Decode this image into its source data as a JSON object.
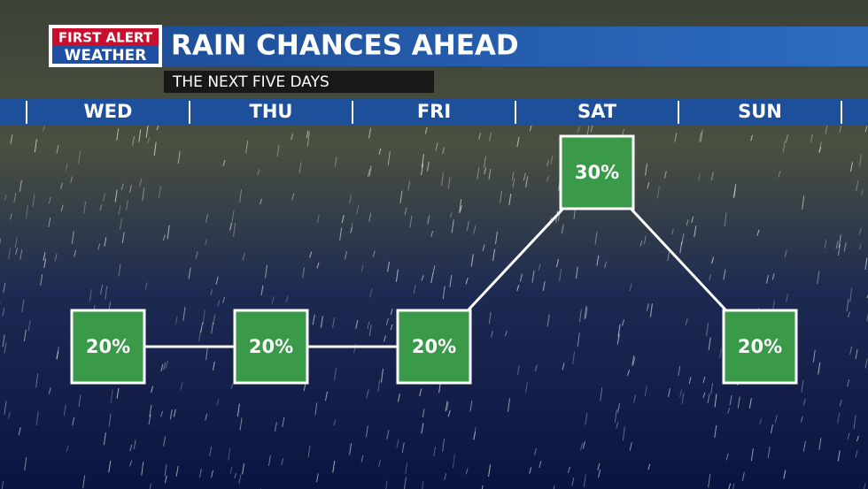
{
  "chart_data": {
    "type": "line",
    "brand": [
      "FIRST ALERT",
      "WEATHER"
    ],
    "title": "RAIN CHANCES AHEAD",
    "subtitle": "THE NEXT FIVE DAYS",
    "categories": [
      "WED",
      "THU",
      "FRI",
      "SAT",
      "SUN"
    ],
    "values": [
      20,
      20,
      20,
      30,
      20
    ],
    "value_labels": [
      "20%",
      "20%",
      "20%",
      "30%",
      "20%"
    ],
    "color": "#3a9a4a"
  }
}
